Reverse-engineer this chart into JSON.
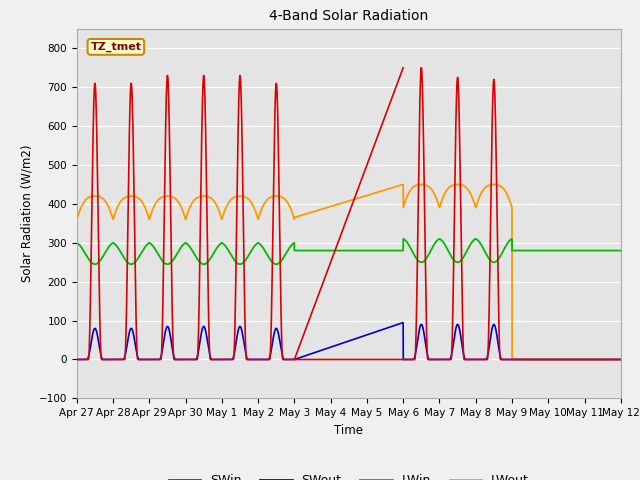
{
  "title": "4-Band Solar Radiation",
  "xlabel": "Time",
  "ylabel": "Solar Radiation (W/m2)",
  "ylim": [
    -100,
    850
  ],
  "yticks": [
    -100,
    0,
    100,
    200,
    300,
    400,
    500,
    600,
    700,
    800
  ],
  "xtick_labels": [
    "Apr 27",
    "Apr 28",
    "Apr 29",
    "Apr 30",
    "May 1",
    "May 2",
    "May 3",
    "May 4",
    "May 5",
    "May 6",
    "May 7",
    "May 8",
    "May 9",
    "May 10",
    "May 11",
    "May 12"
  ],
  "label_box": "TZ_tmet",
  "colors": {
    "SWin": "#dd0000",
    "SWout": "#0000cc",
    "LWin": "#00bb00",
    "LWout": "#ff9900"
  },
  "fig_width": 6.4,
  "fig_height": 4.8,
  "dpi": 100
}
